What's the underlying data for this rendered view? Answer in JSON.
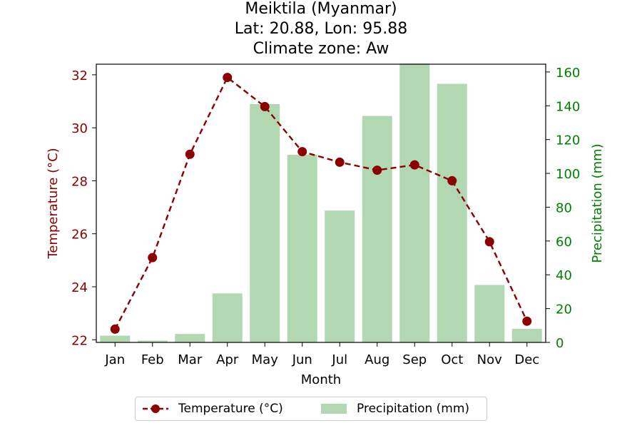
{
  "chart_data": {
    "type": "bar+line",
    "title_lines": [
      "Meiktila (Myanmar)",
      "Lat: 20.88, Lon: 95.88",
      "Climate zone: Aw"
    ],
    "xlabel": "Month",
    "categories": [
      "Jan",
      "Feb",
      "Mar",
      "Apr",
      "May",
      "Jun",
      "Jul",
      "Aug",
      "Sep",
      "Oct",
      "Nov",
      "Dec"
    ],
    "left_axis": {
      "label": "Temperature (°C)",
      "ylim": [
        21.9,
        32.4
      ],
      "ticks": [
        22,
        24,
        26,
        28,
        30,
        32
      ],
      "color": "#8b0000"
    },
    "right_axis": {
      "label": "Precipitation (mm)",
      "ylim": [
        0,
        164.6
      ],
      "ticks": [
        0,
        20,
        40,
        60,
        80,
        100,
        120,
        140,
        160
      ],
      "color": "#008000"
    },
    "series": [
      {
        "name": "Temperature (°C)",
        "type": "line",
        "axis": "left",
        "color": "#8b0000",
        "style": "dashed",
        "marker": "circle",
        "values": [
          22.4,
          25.1,
          29.0,
          31.9,
          30.8,
          29.1,
          28.7,
          28.4,
          28.6,
          28.0,
          25.7,
          22.7
        ]
      },
      {
        "name": "Precipitation (mm)",
        "type": "bar",
        "axis": "right",
        "color": "#b2d8b2",
        "values": [
          4,
          1,
          5,
          29,
          141,
          111,
          78,
          134,
          165,
          153,
          34,
          8
        ]
      }
    ],
    "legend": {
      "placement": "bottom-center",
      "columns": 2
    }
  }
}
